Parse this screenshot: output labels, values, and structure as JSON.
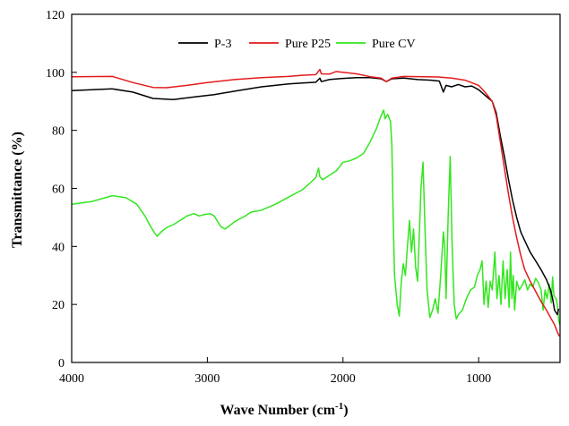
{
  "chart_data": {
    "type": "line",
    "title": "",
    "xlabel": "Wave Number (cm",
    "xlabel_sup": "-1",
    "xlabel_suffix": ")",
    "ylabel": "Transmittance (%)",
    "xlim": [
      4000,
      400
    ],
    "x_reversed": true,
    "ylim": [
      0,
      120
    ],
    "xticks": [
      4000,
      3000,
      2000,
      1000
    ],
    "yticks": [
      0,
      20,
      40,
      60,
      80,
      100,
      120
    ],
    "legend_position": "top-center",
    "grid": false,
    "series": [
      {
        "name": "P-3",
        "color": "#000000",
        "points": [
          [
            4000,
            93.7
          ],
          [
            3700,
            94.3
          ],
          [
            3550,
            93.2
          ],
          [
            3400,
            91.0
          ],
          [
            3250,
            90.6
          ],
          [
            3100,
            91.5
          ],
          [
            2950,
            92.3
          ],
          [
            2800,
            93.5
          ],
          [
            2600,
            95.0
          ],
          [
            2400,
            96.0
          ],
          [
            2300,
            96.3
          ],
          [
            2200,
            96.6
          ],
          [
            2170,
            98.0
          ],
          [
            2160,
            96.8
          ],
          [
            2100,
            97.5
          ],
          [
            2000,
            97.9
          ],
          [
            1900,
            98.2
          ],
          [
            1800,
            98.2
          ],
          [
            1720,
            97.8
          ],
          [
            1680,
            96.8
          ],
          [
            1640,
            97.8
          ],
          [
            1550,
            98.0
          ],
          [
            1450,
            97.5
          ],
          [
            1350,
            97.3
          ],
          [
            1290,
            97.0
          ],
          [
            1260,
            93.2
          ],
          [
            1240,
            95.5
          ],
          [
            1200,
            95.0
          ],
          [
            1150,
            95.8
          ],
          [
            1100,
            95.0
          ],
          [
            1050,
            95.3
          ],
          [
            1000,
            94.0
          ],
          [
            950,
            92.0
          ],
          [
            900,
            90.0
          ],
          [
            870,
            86.0
          ],
          [
            840,
            78.0
          ],
          [
            810,
            71.0
          ],
          [
            780,
            63.0
          ],
          [
            750,
            56.0
          ],
          [
            720,
            50.0
          ],
          [
            690,
            45.0
          ],
          [
            660,
            42.0
          ],
          [
            620,
            38.0
          ],
          [
            580,
            35.0
          ],
          [
            540,
            32.0
          ],
          [
            500,
            28.5
          ],
          [
            470,
            25.0
          ],
          [
            455,
            22.0
          ],
          [
            440,
            18.0
          ],
          [
            420,
            16.5
          ],
          [
            410,
            18.5
          ]
        ]
      },
      {
        "name": "Pure P25",
        "color": "#e41a1c",
        "points": [
          [
            4000,
            98.5
          ],
          [
            3700,
            98.6
          ],
          [
            3550,
            96.5
          ],
          [
            3400,
            94.8
          ],
          [
            3300,
            94.7
          ],
          [
            3150,
            95.5
          ],
          [
            3000,
            96.5
          ],
          [
            2800,
            97.5
          ],
          [
            2600,
            98.2
          ],
          [
            2400,
            98.6
          ],
          [
            2300,
            99.0
          ],
          [
            2200,
            99.2
          ],
          [
            2170,
            101.0
          ],
          [
            2160,
            99.5
          ],
          [
            2100,
            99.4
          ],
          [
            2050,
            100.3
          ],
          [
            2000,
            100.0
          ],
          [
            1900,
            99.5
          ],
          [
            1800,
            98.5
          ],
          [
            1720,
            98.0
          ],
          [
            1680,
            96.8
          ],
          [
            1640,
            98.0
          ],
          [
            1550,
            98.6
          ],
          [
            1400,
            98.5
          ],
          [
            1300,
            98.4
          ],
          [
            1200,
            98.0
          ],
          [
            1100,
            97.3
          ],
          [
            1000,
            95.5
          ],
          [
            950,
            93.0
          ],
          [
            900,
            90.0
          ],
          [
            870,
            85.0
          ],
          [
            840,
            76.0
          ],
          [
            810,
            67.0
          ],
          [
            780,
            58.0
          ],
          [
            750,
            50.0
          ],
          [
            720,
            43.0
          ],
          [
            690,
            37.0
          ],
          [
            660,
            32.0
          ],
          [
            620,
            28.0
          ],
          [
            580,
            24.5
          ],
          [
            540,
            21.0
          ],
          [
            500,
            18.0
          ],
          [
            470,
            15.5
          ],
          [
            440,
            13.0
          ],
          [
            420,
            10.5
          ],
          [
            405,
            9.0
          ]
        ]
      },
      {
        "name": "Pure CV",
        "color": "#33e61f",
        "points": [
          [
            4000,
            54.5
          ],
          [
            3850,
            55.5
          ],
          [
            3700,
            57.5
          ],
          [
            3600,
            56.8
          ],
          [
            3520,
            54.5
          ],
          [
            3460,
            50.5
          ],
          [
            3420,
            47.0
          ],
          [
            3390,
            44.8
          ],
          [
            3370,
            43.5
          ],
          [
            3340,
            45.0
          ],
          [
            3300,
            46.5
          ],
          [
            3250,
            47.5
          ],
          [
            3200,
            49.0
          ],
          [
            3150,
            50.5
          ],
          [
            3100,
            51.3
          ],
          [
            3060,
            50.5
          ],
          [
            3020,
            51.0
          ],
          [
            2980,
            51.3
          ],
          [
            2950,
            50.5
          ],
          [
            2930,
            49.0
          ],
          [
            2900,
            46.8
          ],
          [
            2870,
            46.0
          ],
          [
            2840,
            47.0
          ],
          [
            2800,
            48.5
          ],
          [
            2760,
            49.5
          ],
          [
            2720,
            50.5
          ],
          [
            2680,
            51.8
          ],
          [
            2600,
            52.5
          ],
          [
            2500,
            54.5
          ],
          [
            2400,
            57.0
          ],
          [
            2300,
            59.5
          ],
          [
            2250,
            61.5
          ],
          [
            2200,
            63.8
          ],
          [
            2180,
            67.0
          ],
          [
            2170,
            64.0
          ],
          [
            2150,
            63.0
          ],
          [
            2100,
            64.5
          ],
          [
            2050,
            66.0
          ],
          [
            2000,
            69.0
          ],
          [
            1950,
            69.5
          ],
          [
            1900,
            70.5
          ],
          [
            1850,
            72.0
          ],
          [
            1800,
            76.0
          ],
          [
            1750,
            81.0
          ],
          [
            1720,
            85.0
          ],
          [
            1700,
            87.0
          ],
          [
            1690,
            84.0
          ],
          [
            1670,
            85.5
          ],
          [
            1650,
            83.0
          ],
          [
            1640,
            75.0
          ],
          [
            1630,
            50.0
          ],
          [
            1620,
            30.0
          ],
          [
            1600,
            20.0
          ],
          [
            1585,
            16.0
          ],
          [
            1570,
            28.0
          ],
          [
            1555,
            34.0
          ],
          [
            1540,
            30.0
          ],
          [
            1525,
            40.0
          ],
          [
            1510,
            49.0
          ],
          [
            1495,
            38.0
          ],
          [
            1480,
            46.0
          ],
          [
            1465,
            33.0
          ],
          [
            1450,
            28.0
          ],
          [
            1440,
            41.0
          ],
          [
            1425,
            60.0
          ],
          [
            1410,
            69.0
          ],
          [
            1395,
            45.0
          ],
          [
            1380,
            25.0
          ],
          [
            1360,
            15.5
          ],
          [
            1340,
            18.0
          ],
          [
            1320,
            22.0
          ],
          [
            1300,
            17.0
          ],
          [
            1280,
            30.0
          ],
          [
            1260,
            45.0
          ],
          [
            1250,
            40.0
          ],
          [
            1240,
            22.0
          ],
          [
            1225,
            50.0
          ],
          [
            1210,
            71.0
          ],
          [
            1195,
            40.0
          ],
          [
            1180,
            20.0
          ],
          [
            1165,
            15.0
          ],
          [
            1150,
            16.5
          ],
          [
            1120,
            18.0
          ],
          [
            1090,
            22.0
          ],
          [
            1060,
            25.0
          ],
          [
            1030,
            26.0
          ],
          [
            1010,
            30.0
          ],
          [
            990,
            32.0
          ],
          [
            975,
            35.0
          ],
          [
            960,
            20.0
          ],
          [
            945,
            28.0
          ],
          [
            930,
            19.0
          ],
          [
            915,
            28.0
          ],
          [
            900,
            25.0
          ],
          [
            880,
            38.0
          ],
          [
            865,
            22.0
          ],
          [
            850,
            30.0
          ],
          [
            835,
            20.0
          ],
          [
            820,
            35.0
          ],
          [
            805,
            22.0
          ],
          [
            790,
            32.0
          ],
          [
            775,
            19.0
          ],
          [
            765,
            38.0
          ],
          [
            755,
            22.0
          ],
          [
            745,
            30.0
          ],
          [
            735,
            18.0
          ],
          [
            720,
            28.0
          ],
          [
            700,
            25.0
          ],
          [
            680,
            26.5
          ],
          [
            660,
            28.5
          ],
          [
            640,
            25.0
          ],
          [
            620,
            27.0
          ],
          [
            600,
            26.0
          ],
          [
            580,
            29.0
          ],
          [
            560,
            27.5
          ],
          [
            540,
            25.0
          ],
          [
            525,
            18.0
          ],
          [
            510,
            25.0
          ],
          [
            495,
            22.0
          ],
          [
            480,
            27.0
          ],
          [
            465,
            20.5
          ],
          [
            455,
            29.5
          ],
          [
            445,
            23.0
          ],
          [
            430,
            22.0
          ],
          [
            420,
            20.0
          ],
          [
            410,
            14.5
          ],
          [
            402,
            13.0
          ]
        ]
      }
    ]
  }
}
